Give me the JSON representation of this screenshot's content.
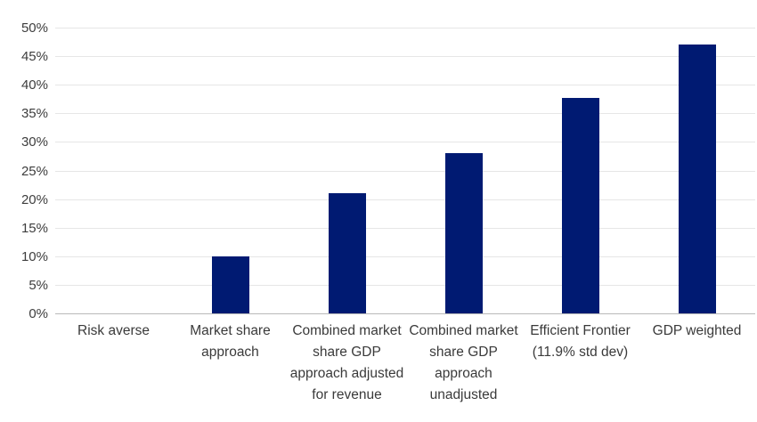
{
  "chart_data": {
    "type": "bar",
    "title": "",
    "xlabel": "",
    "ylabel": "",
    "categories": [
      "Risk averse",
      "Market share approach",
      "Combined market share GDP approach adjusted for revenue",
      "Combined market share GDP approach unadjusted",
      "Efficient Frontier (11.9% std dev)",
      "GDP weighted"
    ],
    "values": [
      0,
      10,
      21,
      28,
      37.7,
      47
    ],
    "ylim": [
      0,
      50
    ],
    "ytick_step": 5,
    "ytick_labels": [
      "0%",
      "5%",
      "10%",
      "15%",
      "20%",
      "25%",
      "30%",
      "35%",
      "40%",
      "45%",
      "50%"
    ],
    "grid": true,
    "legend": "none",
    "colors": {
      "bar_fill": "#001a72",
      "gridline": "#e6e6e6",
      "baseline": "#b9b9b9",
      "tick_text": "#3d3d3d",
      "category_text": "#3a3a3a",
      "background": "#ffffff"
    }
  }
}
